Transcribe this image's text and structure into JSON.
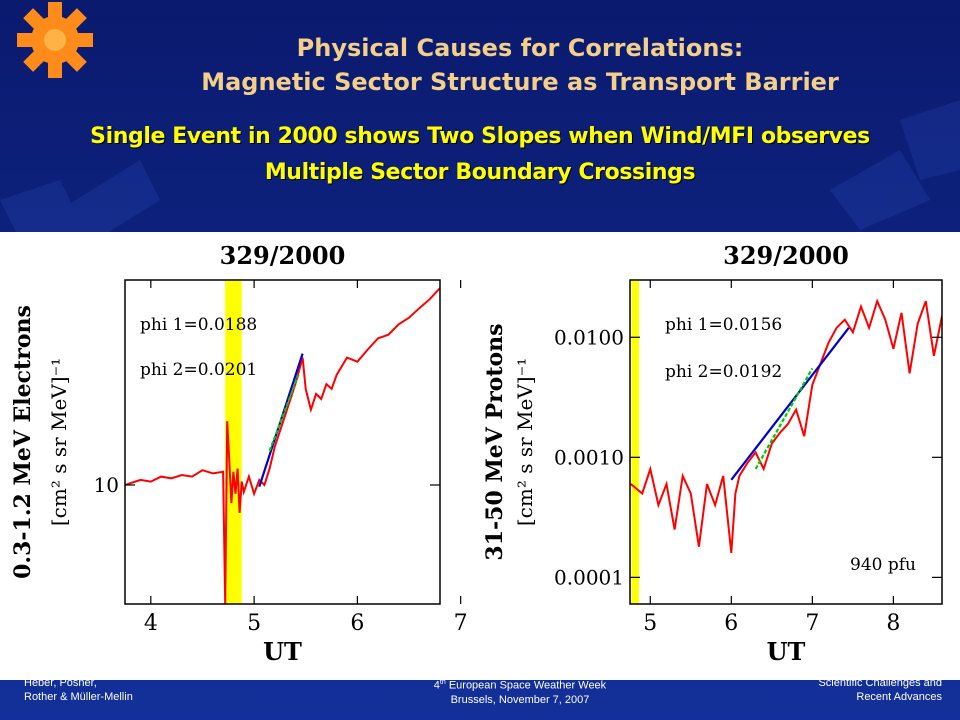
{
  "slide": {
    "title_line1": "Physical Causes for Correlations:",
    "title_line2": "Magnetic Sector Structure as Transport Barrier",
    "subtitle_line1": "Single Event in 2000 shows Two Slopes when Wind/MFI observes",
    "subtitle_line2": "Multiple Sector Boundary Crossings",
    "footer_left_line1": "Heber, Posner,",
    "footer_left_line2": "Rother & Müller-Mellin",
    "footer_center_line1_prefix": "4",
    "footer_center_line1_sup": "th",
    "footer_center_line1_suffix": " European Space Weather Week",
    "footer_center_line2": "Brussels, November 7, 2007",
    "footer_right_line1": "Scientific Challenges and",
    "footer_right_line2": "Recent Advances",
    "colors": {
      "background": "#0b1f7a",
      "title": "#f3cf8a",
      "subtitle": "#ffff00",
      "logo": "#ff8c1a"
    },
    "logo_icon": "sun-gear-icon"
  },
  "chart_data": [
    {
      "type": "line",
      "title": "329/2000",
      "xlabel": "UT",
      "ylabel_line1": "0.3-1.2 MeV Electrons",
      "ylabel_line2": "[cm² s sr MeV]⁻¹",
      "xlim": [
        3.75,
        6.8
      ],
      "ylim": [
        5,
        33
      ],
      "yscale": "log",
      "x_ticks": [
        "4",
        "5",
        "6",
        "7"
      ],
      "y_ticks": [
        "10"
      ],
      "shaded_band": {
        "color": "#ffff00",
        "x_range": [
          4.72,
          4.88
        ]
      },
      "annotations": [
        "phi 1=0.0188",
        "phi 2=0.0201"
      ],
      "series": [
        {
          "color": "#ff0000",
          "x": [
            3.75,
            3.9,
            4.0,
            4.1,
            4.2,
            4.3,
            4.4,
            4.5,
            4.6,
            4.7,
            4.72,
            4.74,
            4.76,
            4.78,
            4.8,
            4.82,
            4.84,
            4.86,
            4.88,
            4.9,
            4.95,
            5.0,
            5.05,
            5.1,
            5.15,
            5.2,
            5.3,
            5.4,
            5.47,
            5.5,
            5.55,
            5.6,
            5.65,
            5.7,
            5.75,
            5.8,
            5.9,
            6.0,
            6.1,
            6.2,
            6.3,
            6.4,
            6.5,
            6.6,
            6.7,
            6.8
          ],
          "y": [
            10.0,
            10.3,
            10.2,
            10.5,
            10.4,
            10.6,
            10.5,
            10.9,
            10.7,
            10.8,
            5.0,
            14.5,
            11.5,
            9.0,
            10.8,
            9.5,
            11.0,
            8.5,
            10.2,
            9.6,
            10.5,
            9.5,
            10.3,
            10.0,
            11.0,
            12.5,
            15.0,
            18.0,
            21.0,
            17.5,
            15.5,
            17.0,
            16.5,
            18.0,
            17.5,
            19.0,
            21.0,
            20.5,
            22.0,
            23.5,
            24.0,
            25.5,
            26.5,
            28.0,
            29.5,
            31.5
          ]
        },
        {
          "name": "phi 1",
          "color": "#0000cc",
          "x": [
            5.05,
            5.47
          ],
          "y": [
            9.9,
            21.5
          ]
        },
        {
          "name": "phi 2",
          "color": "#00cc00",
          "x": [
            5.15,
            5.43
          ],
          "y": [
            12.2,
            19.0
          ]
        }
      ]
    },
    {
      "type": "line",
      "title": "329/2000",
      "xlabel": "UT",
      "ylabel_line1": "31-50 MeV Protons",
      "ylabel_line2": "[cm² s sr MeV]⁻¹",
      "xlim": [
        4.75,
        8.6
      ],
      "ylim": [
        6e-05,
        0.03
      ],
      "yscale": "log",
      "x_ticks": [
        "5",
        "6",
        "7",
        "8"
      ],
      "y_ticks": [
        "0.0100",
        "0.0010",
        "0.0001"
      ],
      "shaded_band": {
        "color": "#ffff00",
        "x_range": [
          4.77,
          4.86
        ]
      },
      "annotations": [
        "phi 1=0.0156",
        "phi 2=0.0192",
        "940 pfu"
      ],
      "series": [
        {
          "color": "#ff0000",
          "x": [
            4.76,
            4.9,
            5.0,
            5.1,
            5.2,
            5.3,
            5.4,
            5.5,
            5.6,
            5.7,
            5.8,
            5.9,
            6.0,
            6.05,
            6.1,
            6.2,
            6.3,
            6.4,
            6.5,
            6.6,
            6.7,
            6.8,
            6.9,
            7.0,
            7.1,
            7.2,
            7.3,
            7.4,
            7.5,
            7.6,
            7.7,
            7.8,
            7.9,
            8.0,
            8.1,
            8.2,
            8.3,
            8.4,
            8.5,
            8.6
          ],
          "y": [
            0.0006,
            0.0005,
            0.0008,
            0.0004,
            0.0006,
            0.00025,
            0.0007,
            0.0005,
            0.00018,
            0.0006,
            0.0004,
            0.0007,
            0.00016,
            0.0005,
            0.0007,
            0.0009,
            0.0011,
            0.0008,
            0.0013,
            0.0016,
            0.0019,
            0.0025,
            0.0015,
            0.004,
            0.006,
            0.009,
            0.012,
            0.014,
            0.011,
            0.018,
            0.012,
            0.02,
            0.014,
            0.008,
            0.016,
            0.005,
            0.013,
            0.02,
            0.007,
            0.015
          ]
        },
        {
          "name": "phi 1",
          "color": "#0000cc",
          "x": [
            6.0,
            7.45
          ],
          "y": [
            0.00065,
            0.012
          ]
        },
        {
          "name": "phi 2",
          "color": "#00cc00",
          "x": [
            6.3,
            7.0
          ],
          "y": [
            0.0008,
            0.0055
          ]
        }
      ]
    }
  ]
}
